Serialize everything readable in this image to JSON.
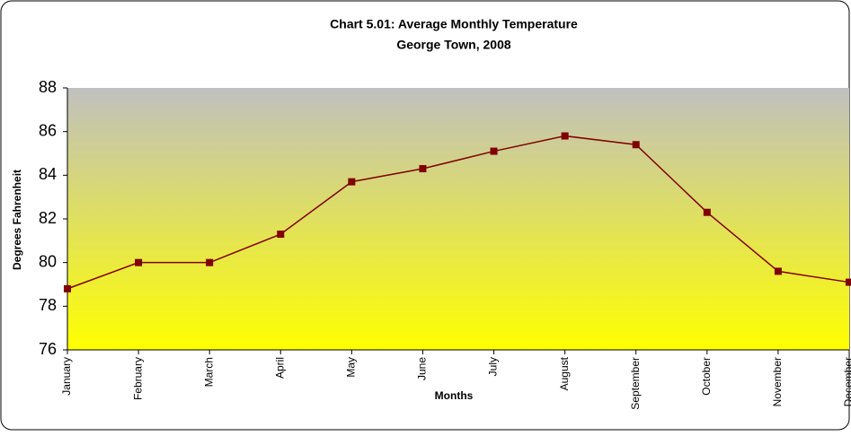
{
  "chart_data": {
    "type": "line",
    "title": "Chart 5.01: Average Monthly Temperature",
    "subtitle": "George Town, 2008",
    "xlabel": "Months",
    "ylabel": "Degrees Fahrenheit",
    "categories": [
      "January",
      "February",
      "March",
      "April",
      "May",
      "June",
      "July",
      "August",
      "September",
      "October",
      "November",
      "December"
    ],
    "series": [
      {
        "name": "Average Monthly Temperature",
        "color": "#800000",
        "values": [
          78.8,
          80.0,
          80.0,
          81.3,
          83.7,
          84.3,
          85.1,
          85.8,
          85.4,
          82.3,
          79.6,
          79.1
        ]
      }
    ],
    "ylim": [
      76,
      88
    ],
    "yticks": [
      76,
      78,
      80,
      82,
      84,
      86,
      88
    ],
    "grid": false,
    "legend": false
  }
}
